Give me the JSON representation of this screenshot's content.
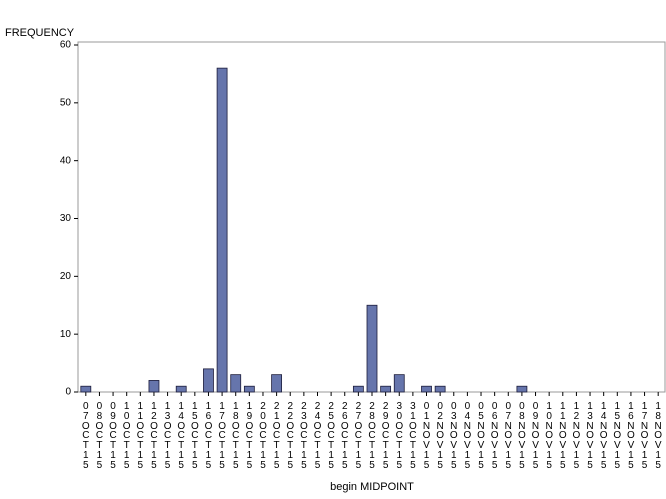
{
  "chart_data": {
    "type": "bar",
    "y_label": "FREQUENCY",
    "x_label": "begin MIDPOINT",
    "categories": [
      "07OCT15",
      "08OCT15",
      "09OCT15",
      "10OCT15",
      "11OCT15",
      "12OCT15",
      "13OCT15",
      "14OCT15",
      "15OCT15",
      "16OCT15",
      "17OCT15",
      "18OCT15",
      "19OCT15",
      "20OCT15",
      "21OCT15",
      "22OCT15",
      "23OCT15",
      "24OCT15",
      "25OCT15",
      "26OCT15",
      "27OCT15",
      "28OCT15",
      "29OCT15",
      "30OCT15",
      "31OCT15",
      "01NOV15",
      "02NOV15",
      "03NOV15",
      "04NOV15",
      "05NOV15",
      "06NOV15",
      "07NOV15",
      "08NOV15",
      "09NOV15",
      "10NOV15",
      "11NOV15",
      "12NOV15",
      "13NOV15",
      "14NOV15",
      "15NOV15",
      "16NOV15",
      "17NOV15",
      "18NOV15"
    ],
    "values": [
      1,
      0,
      0,
      0,
      0,
      2,
      0,
      1,
      0,
      4,
      56,
      3,
      1,
      0,
      3,
      0,
      0,
      0,
      0,
      0,
      1,
      15,
      1,
      3,
      0,
      1,
      1,
      0,
      0,
      0,
      0,
      0,
      1,
      0,
      0,
      0,
      0,
      0,
      0,
      0,
      0,
      0,
      0
    ],
    "color": "#6675ac",
    "ylim": [
      0,
      60
    ],
    "yticks": [
      0,
      10,
      20,
      30,
      40,
      50,
      60
    ]
  }
}
